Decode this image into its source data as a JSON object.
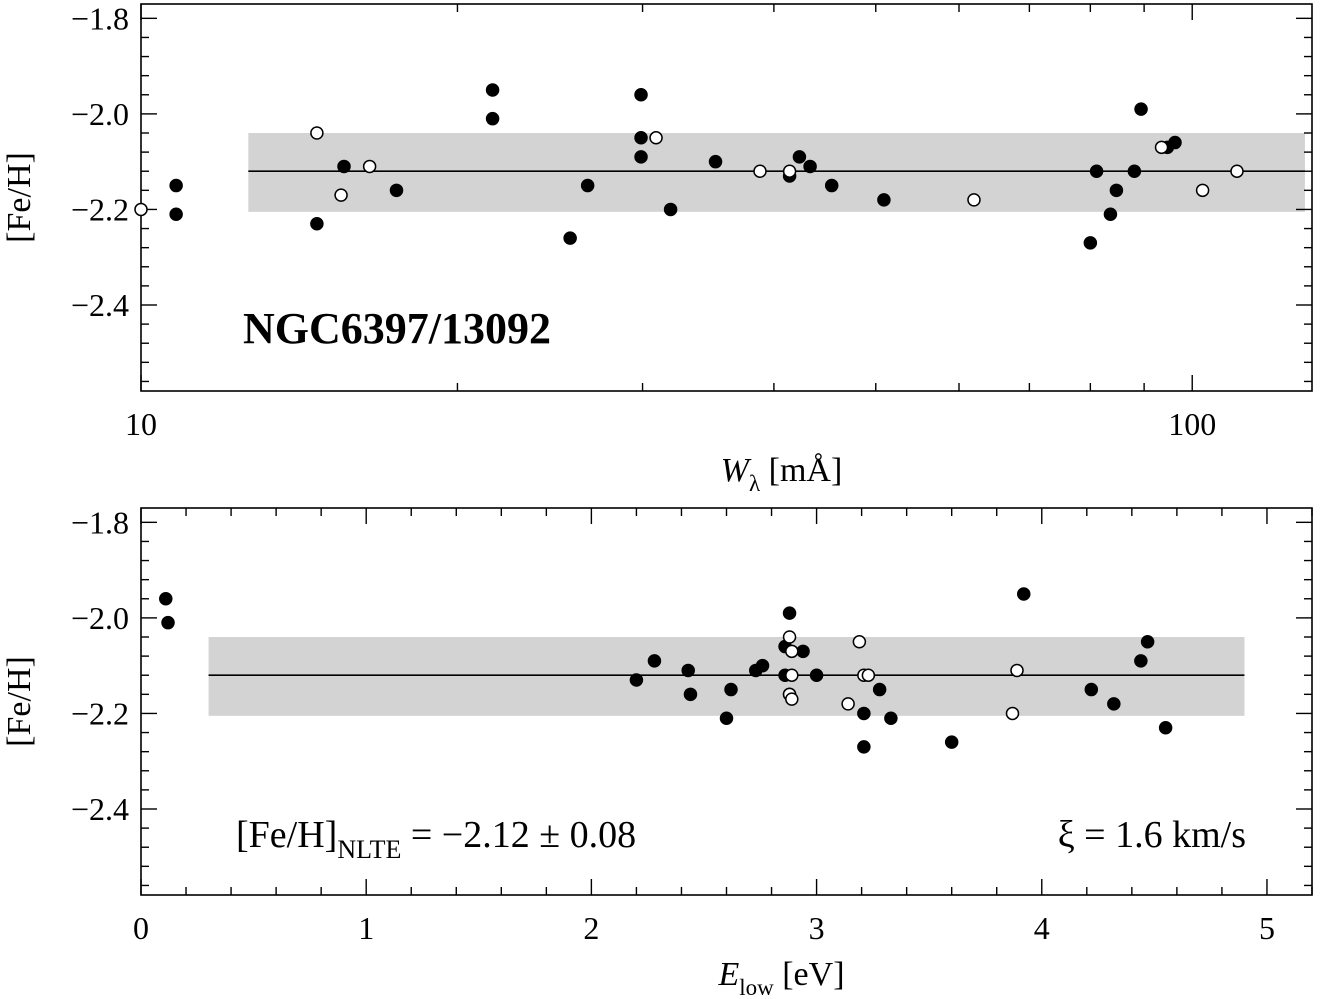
{
  "chart_data": [
    {
      "type": "scatter",
      "x_scale": "log",
      "xlim": [
        10,
        130
      ],
      "ylim": [
        -2.58,
        -1.77
      ],
      "x_major_ticks": [
        10,
        100
      ],
      "x_tick_labels": [
        "10",
        "100"
      ],
      "y_ticks": [
        -1.8,
        -2.0,
        -2.2,
        -2.4
      ],
      "y_tick_labels": [
        "−1.8",
        "−2.0",
        "−2.2",
        "−2.4"
      ],
      "xlabel": {
        "main": "W",
        "sub": "λ",
        "rest": " [mÅ]"
      },
      "ylabel": "[Fe/H]",
      "annotation": "NGC6397/13092",
      "mean_line": -2.12,
      "band": [
        -2.205,
        -2.04
      ],
      "band_x_range": [
        12.65,
        128
      ],
      "grid": false,
      "series": [
        {
          "marker": "filled",
          "points": [
            [
              10.8,
              -2.15
            ],
            [
              10.8,
              -2.21
            ],
            [
              14.7,
              -2.23
            ],
            [
              15.6,
              -2.11
            ],
            [
              17.5,
              -2.16
            ],
            [
              21.6,
              -1.95
            ],
            [
              21.6,
              -2.01
            ],
            [
              25.6,
              -2.26
            ],
            [
              26.6,
              -2.15
            ],
            [
              29.9,
              -1.96
            ],
            [
              29.9,
              -2.05
            ],
            [
              29.9,
              -2.09
            ],
            [
              31.9,
              -2.2
            ],
            [
              35.2,
              -2.1
            ],
            [
              41.4,
              -2.13
            ],
            [
              42.3,
              -2.09
            ],
            [
              43.3,
              -2.11
            ],
            [
              45.4,
              -2.15
            ],
            [
              50.9,
              -2.18
            ],
            [
              80.0,
              -2.27
            ],
            [
              81.1,
              -2.12
            ],
            [
              83.6,
              -2.21
            ],
            [
              84.7,
              -2.16
            ],
            [
              88.1,
              -2.12
            ],
            [
              89.4,
              -1.99
            ],
            [
              94.7,
              -2.07
            ],
            [
              96.3,
              -2.06
            ]
          ]
        },
        {
          "marker": "open",
          "points": [
            [
              10.0,
              -2.2
            ],
            [
              14.7,
              -2.04
            ],
            [
              15.5,
              -2.17
            ],
            [
              16.5,
              -2.11
            ],
            [
              30.9,
              -2.05
            ],
            [
              38.8,
              -2.12
            ],
            [
              41.4,
              -2.12
            ],
            [
              62.0,
              -2.18
            ],
            [
              93.5,
              -2.07
            ],
            [
              102.3,
              -2.16
            ],
            [
              110.3,
              -2.12
            ]
          ]
        }
      ]
    },
    {
      "type": "scatter",
      "xlim": [
        0,
        5.2
      ],
      "ylim": [
        -2.58,
        -1.77
      ],
      "x_ticks": [
        0,
        1,
        2,
        3,
        4,
        5
      ],
      "x_tick_labels": [
        "0",
        "1",
        "2",
        "3",
        "4",
        "5"
      ],
      "y_ticks": [
        -1.8,
        -2.0,
        -2.2,
        -2.4
      ],
      "y_tick_labels": [
        "−1.8",
        "−2.0",
        "−2.2",
        "−2.4"
      ],
      "xlabel": {
        "main": "E",
        "sub": "low",
        "rest": " [eV]"
      },
      "ylabel": "[Fe/H]",
      "annotation_left": {
        "main": "[Fe/H]",
        "sub": "NLTE",
        "rest": " = −2.12 ± 0.08"
      },
      "annotation_right": "ξ = 1.6 km/s",
      "mean_line": -2.12,
      "band": [
        -2.205,
        -2.04
      ],
      "band_x_range": [
        0.3,
        4.9
      ],
      "grid": false,
      "series": [
        {
          "marker": "filled",
          "points": [
            [
              0.11,
              -1.96
            ],
            [
              0.12,
              -2.01
            ],
            [
              2.2,
              -2.13
            ],
            [
              2.28,
              -2.09
            ],
            [
              2.43,
              -2.11
            ],
            [
              2.44,
              -2.16
            ],
            [
              2.6,
              -2.21
            ],
            [
              2.62,
              -2.15
            ],
            [
              2.73,
              -2.11
            ],
            [
              2.76,
              -2.1
            ],
            [
              2.86,
              -2.06
            ],
            [
              2.86,
              -2.12
            ],
            [
              2.88,
              -1.99
            ],
            [
              2.88,
              -2.16
            ],
            [
              2.94,
              -2.07
            ],
            [
              3.0,
              -2.12
            ],
            [
              3.21,
              -2.2
            ],
            [
              3.21,
              -2.27
            ],
            [
              3.28,
              -2.15
            ],
            [
              3.33,
              -2.21
            ],
            [
              3.6,
              -2.26
            ],
            [
              3.92,
              -1.95
            ],
            [
              4.22,
              -2.15
            ],
            [
              4.32,
              -2.18
            ],
            [
              4.44,
              -2.09
            ],
            [
              4.47,
              -2.05
            ],
            [
              4.55,
              -2.23
            ]
          ]
        },
        {
          "marker": "open",
          "points": [
            [
              2.88,
              -2.04
            ],
            [
              2.89,
              -2.07
            ],
            [
              2.89,
              -2.12
            ],
            [
              2.88,
              -2.16
            ],
            [
              2.89,
              -2.17
            ],
            [
              3.14,
              -2.18
            ],
            [
              3.19,
              -2.05
            ],
            [
              3.21,
              -2.12
            ],
            [
              3.23,
              -2.12
            ],
            [
              3.87,
              -2.2
            ],
            [
              3.89,
              -2.11
            ]
          ]
        }
      ]
    }
  ]
}
